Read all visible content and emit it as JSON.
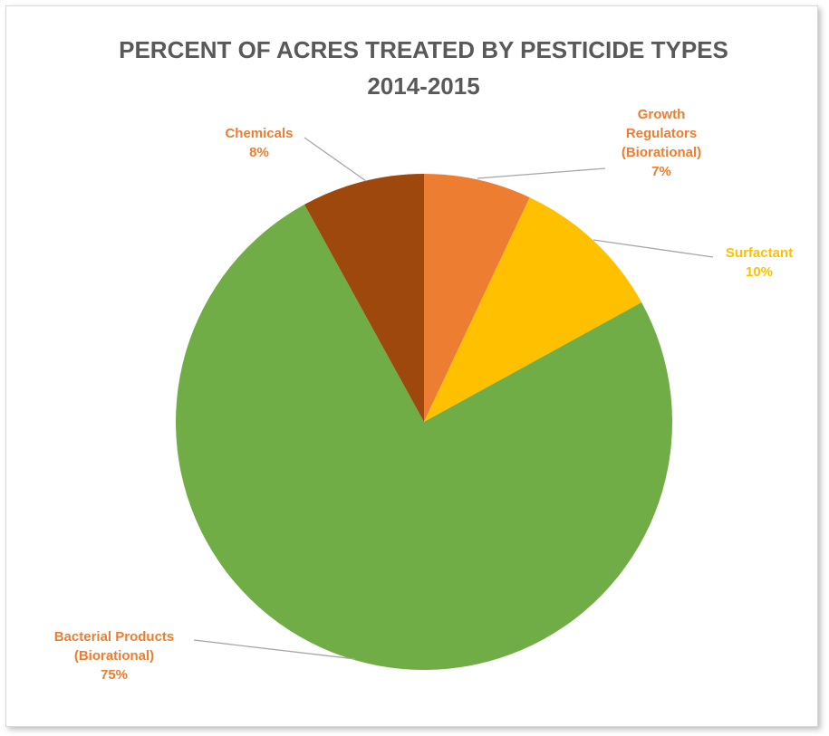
{
  "chart_data": {
    "type": "pie",
    "title_lines": [
      "PERCENT OF ACRES TREATED BY PESTICIDE TYPES",
      "2014-2015"
    ],
    "slices": [
      {
        "label_lines": [
          "Growth",
          "Regulators",
          "(Biorational)"
        ],
        "pct_label": "7%",
        "value": 7,
        "color": "#ED7D31",
        "label_color": "#ED7D31"
      },
      {
        "label_lines": [
          "Surfactant"
        ],
        "pct_label": "10%",
        "value": 10,
        "color": "#FFC000",
        "label_color": "#FFC000"
      },
      {
        "label_lines": [
          "Bacterial Products",
          "(Biorational)"
        ],
        "pct_label": "75%",
        "value": 75,
        "color": "#70AD47",
        "label_color": "#ED7D31"
      },
      {
        "label_lines": [
          "Chemicals"
        ],
        "pct_label": "8%",
        "value": 8,
        "color": "#9E480E",
        "label_color": "#ED7D31"
      }
    ],
    "leader_line_color": "#A6A6A6",
    "start_angle_deg": 0,
    "direction": "clockwise"
  }
}
